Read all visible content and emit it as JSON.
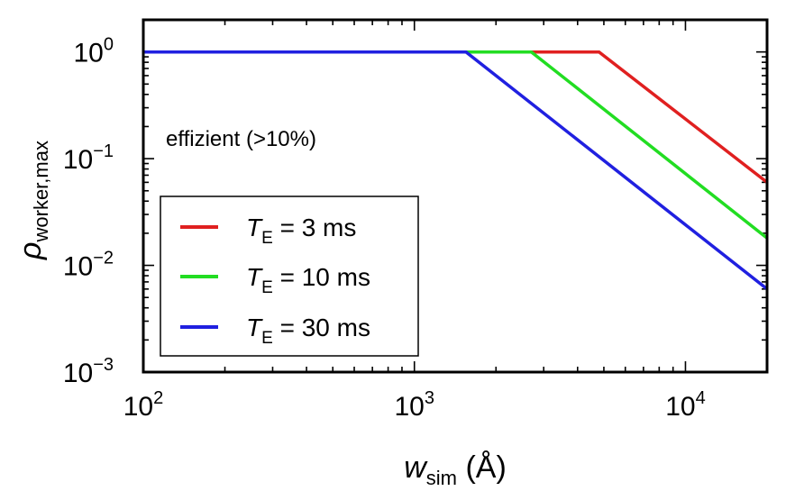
{
  "chart_data": {
    "type": "line",
    "x_scale": "log",
    "y_scale": "log",
    "xlim": [
      100,
      20000
    ],
    "ylim": [
      0.001,
      2
    ],
    "xlabel": {
      "main": "w",
      "sub": "sim",
      "unit": " (Å)"
    },
    "ylabel": {
      "main": "ρ",
      "sub": "worker,max"
    },
    "x_ticks": [
      {
        "value": 100,
        "base": "10",
        "exp": "2"
      },
      {
        "value": 1000,
        "base": "10",
        "exp": "3"
      },
      {
        "value": 10000,
        "base": "10",
        "exp": "4"
      }
    ],
    "y_ticks": [
      {
        "value": 1,
        "base": "10",
        "exp": "0"
      },
      {
        "value": 0.1,
        "base": "10",
        "exp": "−1"
      },
      {
        "value": 0.01,
        "base": "10",
        "exp": "−2"
      },
      {
        "value": 0.001,
        "base": "10",
        "exp": "−3"
      }
    ],
    "annotation": "effizient (>10%)",
    "series": [
      {
        "name": "T_E = 3 ms",
        "label_main": "T",
        "label_sub": "E",
        "label_rest": " = 3 ms",
        "color": "#e02020",
        "x": [
          100,
          4800,
          20000
        ],
        "y": [
          1,
          1,
          0.06
        ]
      },
      {
        "name": "T_E = 10 ms",
        "label_main": "T",
        "label_sub": "E",
        "label_rest": " = 10 ms",
        "color": "#22dd22",
        "x": [
          100,
          2700,
          20000
        ],
        "y": [
          1,
          1,
          0.018
        ]
      },
      {
        "name": "T_E = 30 ms",
        "label_main": "T",
        "label_sub": "E",
        "label_rest": " = 30 ms",
        "color": "#2020e0",
        "x": [
          100,
          1550,
          20000
        ],
        "y": [
          1,
          1,
          0.006
        ]
      }
    ],
    "legend_position": "lower-left",
    "grid": false
  }
}
